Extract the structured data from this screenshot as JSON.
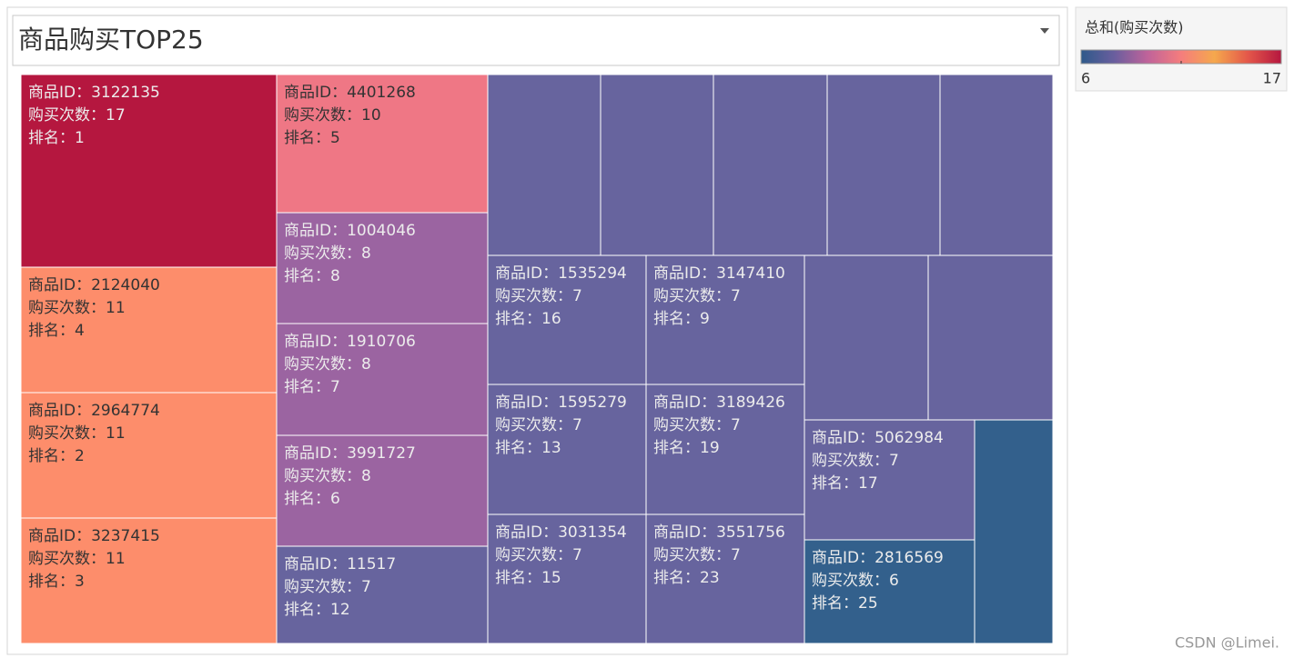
{
  "chart_data": {
    "type": "treemap",
    "title": "商品购买TOP25",
    "field_labels": {
      "id": "商品ID：",
      "count": "购买次数：",
      "rank": "排名："
    },
    "items": [
      {
        "id": "3122135",
        "count": 17,
        "rank": 1,
        "color": "#b5173f"
      },
      {
        "id": "2124040",
        "count": 11,
        "rank": 4,
        "color": "#fd8d6b"
      },
      {
        "id": "2964774",
        "count": 11,
        "rank": 2,
        "color": "#fd8d6b"
      },
      {
        "id": "3237415",
        "count": 11,
        "rank": 3,
        "color": "#fd8d6b"
      },
      {
        "id": "4401268",
        "count": 10,
        "rank": 5,
        "color": "#ef7785"
      },
      {
        "id": "1004046",
        "count": 8,
        "rank": 8,
        "color": "#9b64a1"
      },
      {
        "id": "1910706",
        "count": 8,
        "rank": 7,
        "color": "#9b64a1"
      },
      {
        "id": "3991727",
        "count": 8,
        "rank": 6,
        "color": "#9b64a1"
      },
      {
        "id": "11517",
        "count": 7,
        "rank": 12,
        "color": "#67649e"
      },
      {
        "id": null,
        "count": 7,
        "rank": null,
        "color": "#67649e"
      },
      {
        "id": null,
        "count": 7,
        "rank": null,
        "color": "#67649e"
      },
      {
        "id": null,
        "count": 7,
        "rank": null,
        "color": "#67649e"
      },
      {
        "id": null,
        "count": 7,
        "rank": null,
        "color": "#67649e"
      },
      {
        "id": null,
        "count": 7,
        "rank": null,
        "color": "#67649e"
      },
      {
        "id": "1535294",
        "count": 7,
        "rank": 16,
        "color": "#67649e"
      },
      {
        "id": "1595279",
        "count": 7,
        "rank": 13,
        "color": "#67649e"
      },
      {
        "id": "3031354",
        "count": 7,
        "rank": 15,
        "color": "#67649e"
      },
      {
        "id": "3147410",
        "count": 7,
        "rank": 9,
        "color": "#67649e"
      },
      {
        "id": "3189426",
        "count": 7,
        "rank": 19,
        "color": "#67649e"
      },
      {
        "id": "3551756",
        "count": 7,
        "rank": 23,
        "color": "#67649e"
      },
      {
        "id": null,
        "count": 7,
        "rank": null,
        "color": "#67649e"
      },
      {
        "id": null,
        "count": 7,
        "rank": null,
        "color": "#67649e"
      },
      {
        "id": "5062984",
        "count": 7,
        "rank": 17,
        "color": "#67649e"
      },
      {
        "id": "2816569",
        "count": 6,
        "rank": 25,
        "color": "#33608c"
      },
      {
        "id": null,
        "count": 6,
        "rank": null,
        "color": "#33608c"
      }
    ],
    "legend": {
      "title": "总和(购买次数)",
      "min": 6,
      "max": 17,
      "colors": [
        "#2e5a8a",
        "#6a5e9e",
        "#c0639a",
        "#f57d7d",
        "#f5a84d",
        "#e4574a",
        "#b5173f"
      ]
    },
    "watermark": "CSDN @Limei."
  }
}
